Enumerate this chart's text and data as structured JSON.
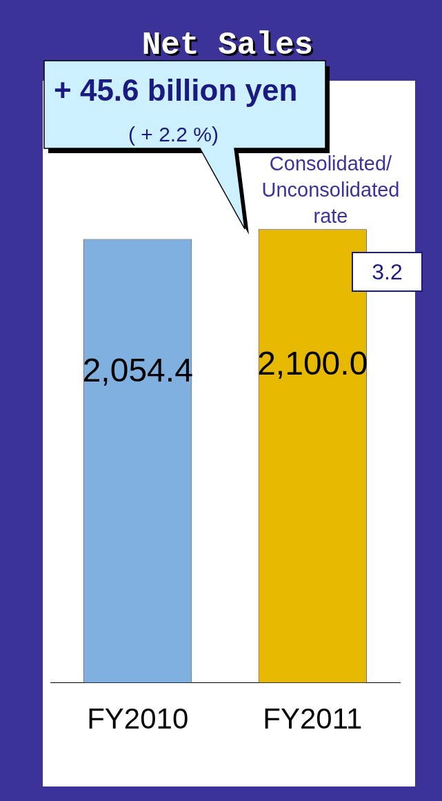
{
  "chart_data": {
    "type": "bar",
    "title": "Net Sales",
    "categories": [
      "FY2010",
      "FY2011"
    ],
    "values": [
      2054.4,
      2100.0
    ],
    "colors": [
      "#7fb0e0",
      "#e6b800"
    ],
    "data_labels": true,
    "value_labels": [
      "2,054.4",
      "2,100.0"
    ],
    "annotations": [
      "+ 45.6 billion yen",
      "( + 2.2 %)",
      "Consolidated/ Unconsolidated rate",
      "3.2"
    ],
    "legend": false,
    "grid": false
  }
}
